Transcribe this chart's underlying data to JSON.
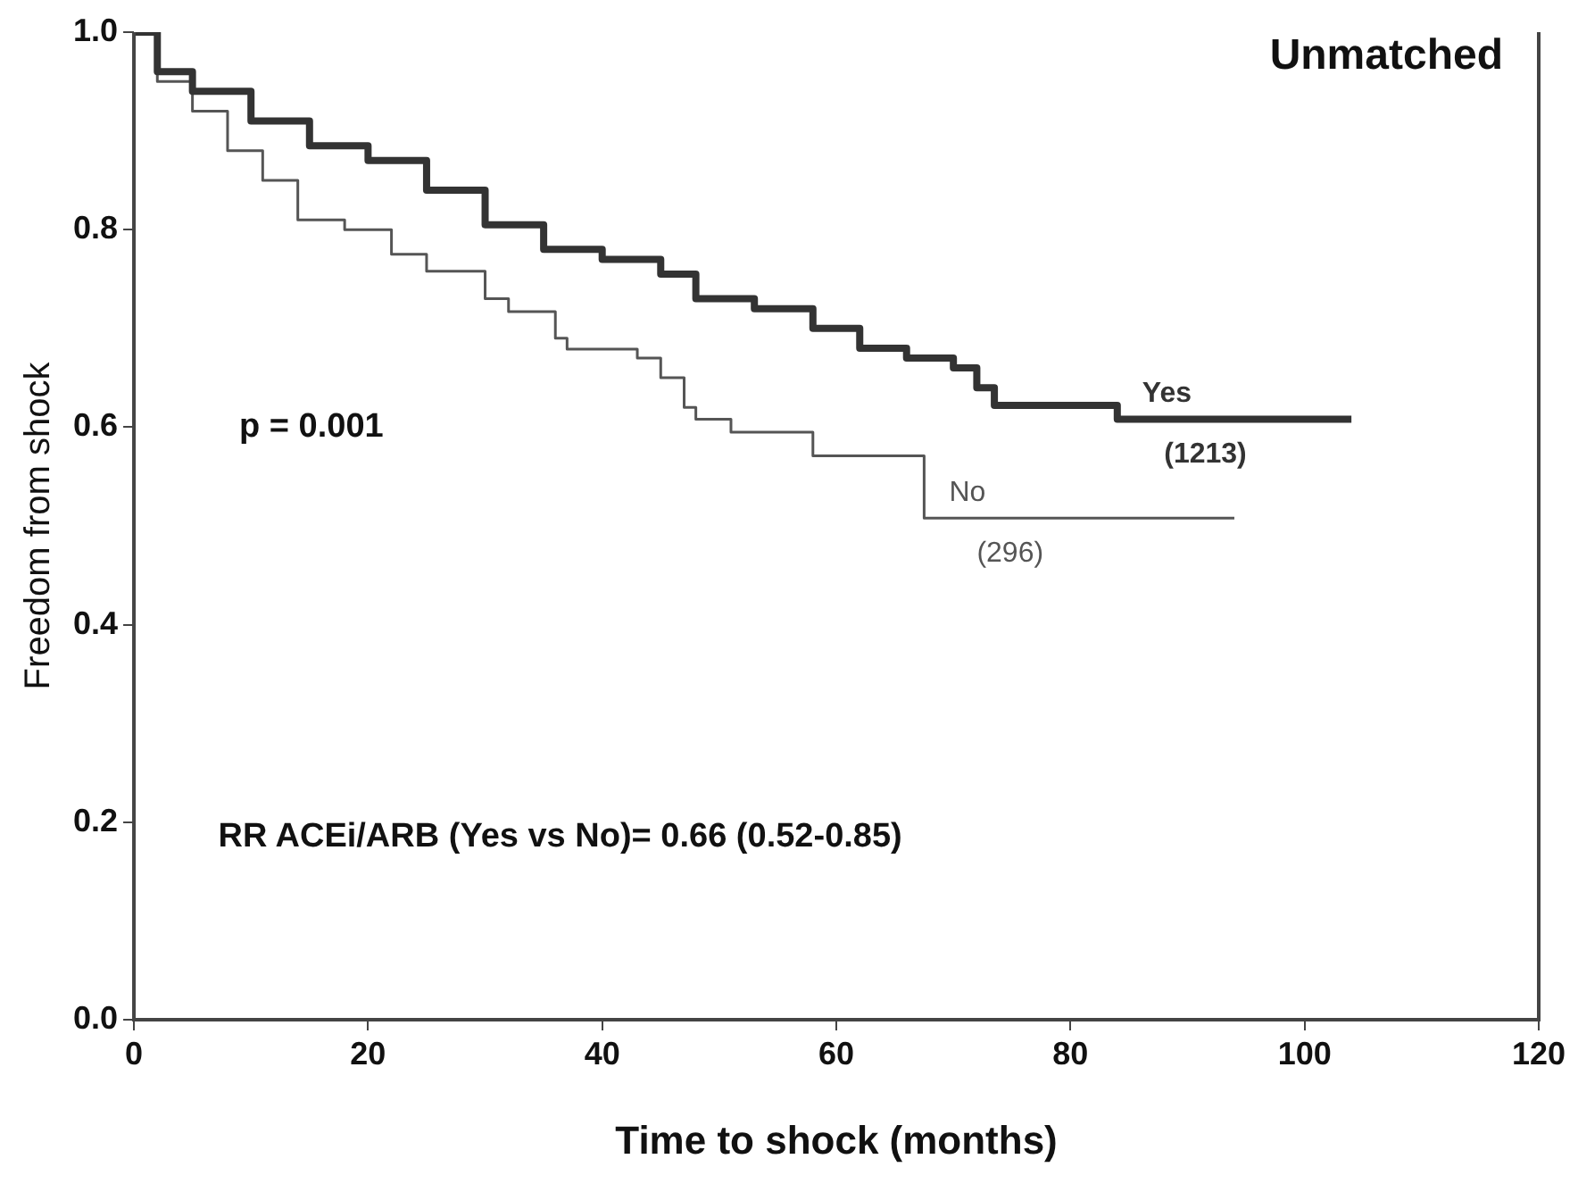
{
  "chart_data": {
    "type": "step",
    "title": "Unmatched",
    "xlabel": "Time to shock (months)",
    "ylabel": "Freedom from shock",
    "xlim": [
      0,
      120
    ],
    "xticks": [
      0,
      20,
      40,
      60,
      80,
      100,
      120
    ],
    "ylim": [
      0,
      1
    ],
    "yticks": [
      {
        "value": 0,
        "label": "0.0"
      },
      0.2,
      0.4,
      0.6,
      0.8,
      {
        "value": 1,
        "label": "1.0"
      }
    ],
    "grid": false,
    "legend": false,
    "marker": "none",
    "series": [
      {
        "name": "Yes",
        "color": "#333333",
        "x": [
          0,
          2,
          5,
          10,
          15,
          20,
          25,
          30,
          35,
          40,
          45,
          48,
          53,
          58,
          62,
          66,
          70,
          72,
          73.5,
          84,
          104
        ],
        "values": [
          1.0,
          0.96,
          0.94,
          0.91,
          0.885,
          0.87,
          0.84,
          0.805,
          0.78,
          0.77,
          0.755,
          0.73,
          0.72,
          0.7,
          0.68,
          0.67,
          0.66,
          0.64,
          0.622,
          0.608,
          0.608
        ]
      },
      {
        "name": "No",
        "color": "#555555",
        "x": [
          0,
          2,
          5,
          8,
          11,
          14,
          18,
          22,
          25,
          30,
          32,
          36,
          37,
          43,
          45,
          47,
          48,
          51,
          58,
          67.5,
          94
        ],
        "values": [
          1.0,
          0.95,
          0.92,
          0.88,
          0.85,
          0.81,
          0.8,
          0.775,
          0.758,
          0.73,
          0.717,
          0.69,
          0.679,
          0.67,
          0.65,
          0.62,
          0.608,
          0.595,
          0.571,
          0.508,
          0.508
        ]
      }
    ],
    "annotations": [
      "p = 0.001",
      "RR ACEi/ARB (Yes vs No)= 0.66 (0.52-0.85)",
      {
        "text": "(1213)",
        "x": 88,
        "y": 0.608
      },
      {
        "text": "(296)",
        "x": 72,
        "y": 0.508
      }
    ]
  }
}
